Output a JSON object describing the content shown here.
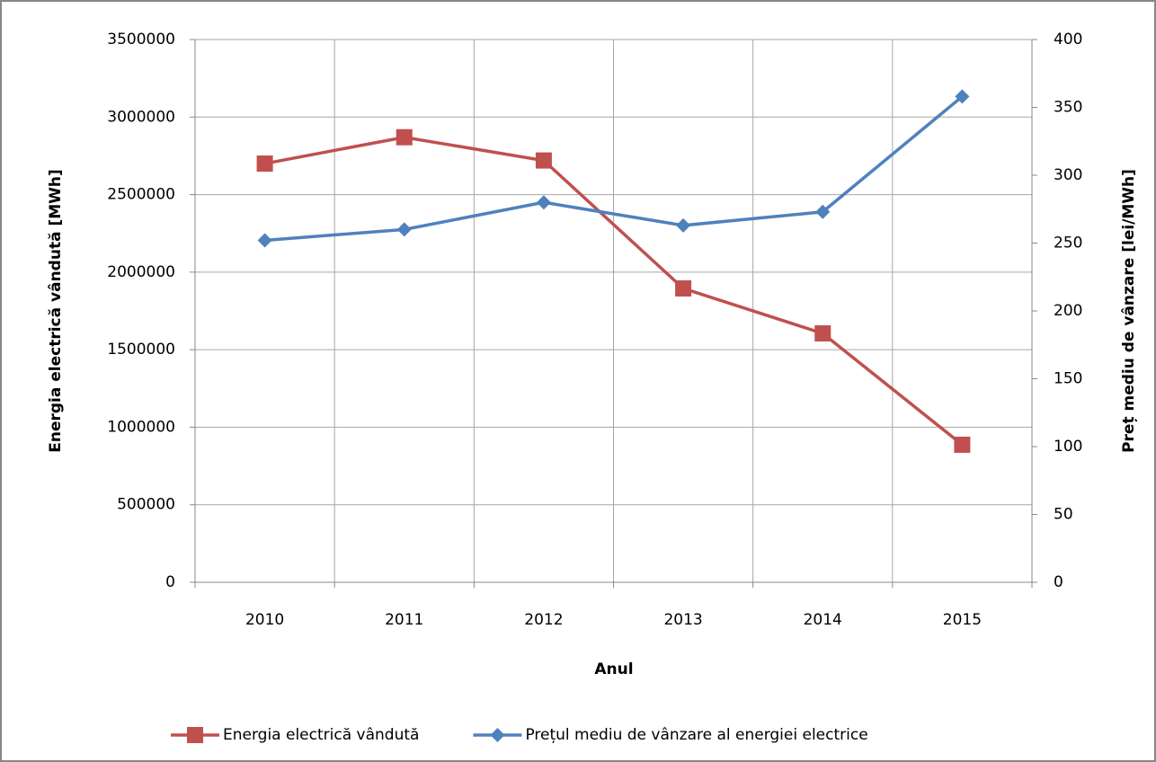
{
  "chart_data": {
    "type": "line",
    "x_label": "Anul",
    "y_label": "Energia electrică vândută [MWh]",
    "y2_label": "Preț mediu de vânzare [lei/MWh]",
    "categories": [
      "2010",
      "2011",
      "2012",
      "2013",
      "2014",
      "2015"
    ],
    "series": [
      {
        "name": "Energia electrică vândută",
        "color": "#c0504d",
        "marker": "square",
        "values": [
          2700000,
          2870000,
          2720000,
          1895000,
          1605000,
          887000
        ]
      },
      {
        "name": "Prețul mediu de vânzare al energiei electrice",
        "color": "#4f81bd",
        "marker": "diamond",
        "axis": "y2",
        "values": [
          252,
          260,
          280,
          263,
          273,
          358
        ]
      }
    ],
    "ylim": [
      0,
      3500000
    ],
    "yticks": [
      0,
      500000,
      1000000,
      1500000,
      2000000,
      2500000,
      3000000,
      3500000
    ],
    "y2lim": [
      0,
      400
    ],
    "y2ticks": [
      0,
      50,
      100,
      150,
      200,
      250,
      300,
      350,
      400
    ],
    "grid": true,
    "legend": "bottom"
  }
}
